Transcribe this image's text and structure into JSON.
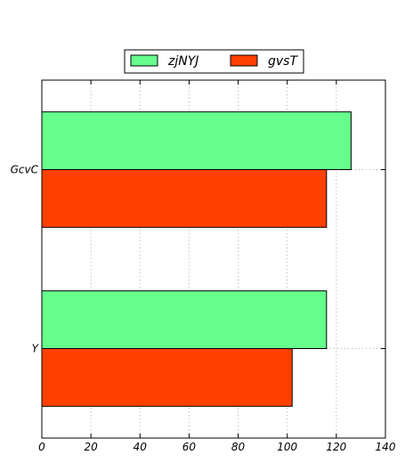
{
  "chart_data": {
    "type": "bar",
    "orientation": "horizontal",
    "categories": [
      "GcvC",
      "Y"
    ],
    "series": [
      {
        "name": "zjNYJ",
        "color": "#66ff8c",
        "values": [
          126,
          116
        ]
      },
      {
        "name": "gvsT",
        "color": "#ff4000",
        "values": [
          116,
          102
        ]
      }
    ],
    "xlim": [
      0,
      140
    ],
    "xticks": [
      "0",
      "20",
      "40",
      "60",
      "80",
      "100",
      "120",
      "140"
    ],
    "grid": true,
    "legend_position": "top-center",
    "title": "",
    "xlabel": "",
    "ylabel": ""
  }
}
